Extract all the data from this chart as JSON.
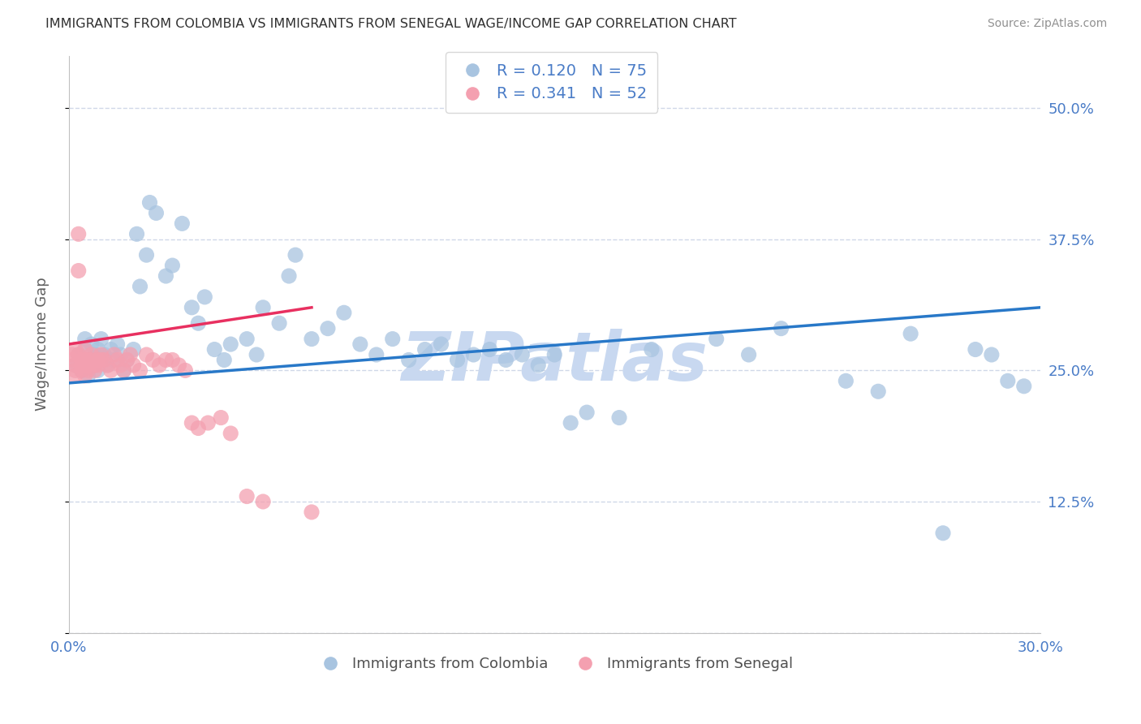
{
  "title": "IMMIGRANTS FROM COLOMBIA VS IMMIGRANTS FROM SENEGAL WAGE/INCOME GAP CORRELATION CHART",
  "source": "Source: ZipAtlas.com",
  "ylabel": "Wage/Income Gap",
  "xlabel_colombia": "Immigrants from Colombia",
  "xlabel_senegal": "Immigrants from Senegal",
  "colombia_R": 0.12,
  "colombia_N": 75,
  "senegal_R": 0.341,
  "senegal_N": 52,
  "xmin": 0.0,
  "xmax": 0.3,
  "ymin": 0.0,
  "ymax": 0.55,
  "yticks": [
    0.0,
    0.125,
    0.25,
    0.375,
    0.5
  ],
  "ytick_labels": [
    "",
    "12.5%",
    "25.0%",
    "37.5%",
    "50.0%"
  ],
  "xticks": [
    0.0,
    0.05,
    0.1,
    0.15,
    0.2,
    0.25,
    0.3
  ],
  "color_colombia": "#a8c4e0",
  "color_senegal": "#f4a0b0",
  "trendline_colombia": "#2878c8",
  "trendline_senegal": "#e83060",
  "grid_color": "#d0d8e8",
  "watermark_color": "#c8d8f0",
  "title_color": "#303030",
  "axis_label_color": "#606060",
  "tick_color": "#4a7cc7",
  "background_color": "#ffffff",
  "colombia_x": [
    0.002,
    0.003,
    0.004,
    0.005,
    0.005,
    0.006,
    0.006,
    0.007,
    0.007,
    0.008,
    0.008,
    0.009,
    0.009,
    0.01,
    0.01,
    0.011,
    0.012,
    0.013,
    0.014,
    0.015,
    0.016,
    0.017,
    0.018,
    0.02,
    0.021,
    0.022,
    0.024,
    0.025,
    0.027,
    0.03,
    0.032,
    0.035,
    0.038,
    0.04,
    0.042,
    0.045,
    0.048,
    0.05,
    0.055,
    0.058,
    0.06,
    0.065,
    0.068,
    0.07,
    0.075,
    0.08,
    0.085,
    0.09,
    0.095,
    0.1,
    0.105,
    0.11,
    0.115,
    0.12,
    0.125,
    0.13,
    0.135,
    0.14,
    0.145,
    0.15,
    0.155,
    0.16,
    0.17,
    0.18,
    0.2,
    0.21,
    0.22,
    0.24,
    0.25,
    0.26,
    0.27,
    0.28,
    0.285,
    0.29,
    0.295
  ],
  "colombia_y": [
    0.255,
    0.265,
    0.25,
    0.27,
    0.28,
    0.26,
    0.245,
    0.26,
    0.275,
    0.255,
    0.265,
    0.25,
    0.27,
    0.26,
    0.28,
    0.265,
    0.255,
    0.27,
    0.26,
    0.275,
    0.265,
    0.25,
    0.26,
    0.27,
    0.38,
    0.33,
    0.36,
    0.41,
    0.4,
    0.34,
    0.35,
    0.39,
    0.31,
    0.295,
    0.32,
    0.27,
    0.26,
    0.275,
    0.28,
    0.265,
    0.31,
    0.295,
    0.34,
    0.36,
    0.28,
    0.29,
    0.305,
    0.275,
    0.265,
    0.28,
    0.26,
    0.27,
    0.275,
    0.26,
    0.265,
    0.27,
    0.26,
    0.265,
    0.255,
    0.265,
    0.2,
    0.21,
    0.205,
    0.27,
    0.28,
    0.265,
    0.29,
    0.24,
    0.23,
    0.285,
    0.095,
    0.27,
    0.265,
    0.24,
    0.235
  ],
  "senegal_x": [
    0.001,
    0.001,
    0.002,
    0.002,
    0.002,
    0.002,
    0.003,
    0.003,
    0.003,
    0.004,
    0.004,
    0.004,
    0.005,
    0.005,
    0.005,
    0.006,
    0.006,
    0.006,
    0.007,
    0.007,
    0.008,
    0.008,
    0.009,
    0.009,
    0.01,
    0.01,
    0.011,
    0.012,
    0.013,
    0.014,
    0.015,
    0.016,
    0.017,
    0.018,
    0.019,
    0.02,
    0.022,
    0.024,
    0.026,
    0.028,
    0.03,
    0.032,
    0.034,
    0.036,
    0.038,
    0.04,
    0.043,
    0.047,
    0.05,
    0.055,
    0.06,
    0.075
  ],
  "senegal_y": [
    0.265,
    0.26,
    0.27,
    0.255,
    0.25,
    0.245,
    0.38,
    0.345,
    0.265,
    0.26,
    0.255,
    0.25,
    0.27,
    0.26,
    0.245,
    0.26,
    0.255,
    0.25,
    0.265,
    0.26,
    0.255,
    0.25,
    0.26,
    0.255,
    0.265,
    0.26,
    0.26,
    0.255,
    0.25,
    0.265,
    0.26,
    0.255,
    0.25,
    0.26,
    0.265,
    0.255,
    0.25,
    0.265,
    0.26,
    0.255,
    0.26,
    0.26,
    0.255,
    0.25,
    0.2,
    0.195,
    0.2,
    0.205,
    0.19,
    0.13,
    0.125,
    0.115
  ],
  "colombia_trend_x": [
    0.0,
    0.3
  ],
  "colombia_trend_y": [
    0.238,
    0.31
  ],
  "senegal_trend_x": [
    0.0,
    0.075
  ],
  "senegal_trend_y": [
    0.275,
    0.31
  ]
}
